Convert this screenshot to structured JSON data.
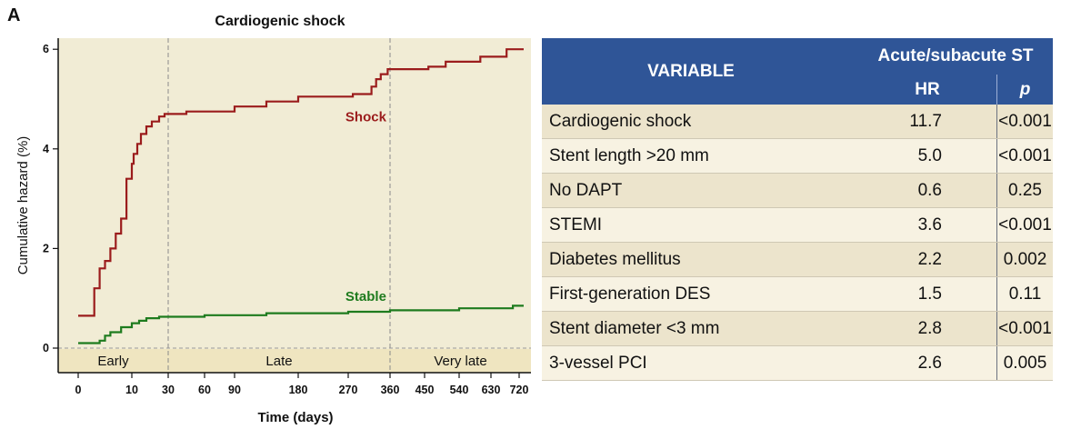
{
  "panel_label": "A",
  "chart_data": {
    "type": "line",
    "title": "Cardiogenic shock",
    "xlabel": "Time (days)",
    "ylabel": "Cumulative hazard (%)",
    "x_ticks": [
      "0",
      "10",
      "30",
      "60",
      "90",
      "180",
      "270",
      "360",
      "450",
      "540",
      "630",
      "720"
    ],
    "y_ticks": [
      "0",
      "2",
      "4",
      "6"
    ],
    "ylim": [
      0,
      6.2
    ],
    "periods": [
      "Early",
      "Late",
      "Very late"
    ],
    "period_boundaries": [
      "30",
      "360"
    ],
    "series": [
      {
        "name": "Shock",
        "color": "#9b1c1c",
        "step": true,
        "points": [
          [
            "0",
            0.65
          ],
          [
            "3",
            0.65
          ],
          [
            "3",
            1.2
          ],
          [
            "4",
            1.2
          ],
          [
            "4",
            1.6
          ],
          [
            "5",
            1.6
          ],
          [
            "5",
            1.75
          ],
          [
            "6",
            1.75
          ],
          [
            "6",
            2.0
          ],
          [
            "7",
            2.0
          ],
          [
            "7",
            2.3
          ],
          [
            "8",
            2.3
          ],
          [
            "8",
            2.6
          ],
          [
            "9",
            2.6
          ],
          [
            "9",
            3.4
          ],
          [
            "10",
            3.4
          ],
          [
            "10",
            3.7
          ],
          [
            "11",
            3.7
          ],
          [
            "11",
            3.9
          ],
          [
            "13",
            3.9
          ],
          [
            "13",
            4.1
          ],
          [
            "15",
            4.1
          ],
          [
            "15",
            4.3
          ],
          [
            "18",
            4.3
          ],
          [
            "18",
            4.45
          ],
          [
            "21",
            4.45
          ],
          [
            "21",
            4.55
          ],
          [
            "25",
            4.55
          ],
          [
            "25",
            4.65
          ],
          [
            "28",
            4.65
          ],
          [
            "28",
            4.7
          ],
          [
            "45",
            4.7
          ],
          [
            "45",
            4.75
          ],
          [
            "90",
            4.75
          ],
          [
            "90",
            4.85
          ],
          [
            "135",
            4.85
          ],
          [
            "135",
            4.95
          ],
          [
            "180",
            4.95
          ],
          [
            "180",
            5.05
          ],
          [
            "280",
            5.05
          ],
          [
            "280",
            5.1
          ],
          [
            "320",
            5.1
          ],
          [
            "320",
            5.25
          ],
          [
            "330",
            5.25
          ],
          [
            "330",
            5.4
          ],
          [
            "340",
            5.4
          ],
          [
            "340",
            5.5
          ],
          [
            "355",
            5.5
          ],
          [
            "355",
            5.6
          ],
          [
            "460",
            5.6
          ],
          [
            "460",
            5.65
          ],
          [
            "505",
            5.65
          ],
          [
            "505",
            5.75
          ],
          [
            "600",
            5.75
          ],
          [
            "600",
            5.85
          ],
          [
            "680",
            5.85
          ],
          [
            "680",
            6.0
          ],
          [
            "735",
            6.0
          ]
        ]
      },
      {
        "name": "Stable",
        "color": "#1e7b1e",
        "step": true,
        "points": [
          [
            "0",
            0.1
          ],
          [
            "4",
            0.1
          ],
          [
            "4",
            0.15
          ],
          [
            "5",
            0.15
          ],
          [
            "5",
            0.25
          ],
          [
            "6",
            0.25
          ],
          [
            "6",
            0.32
          ],
          [
            "8",
            0.32
          ],
          [
            "8",
            0.42
          ],
          [
            "10",
            0.42
          ],
          [
            "10",
            0.5
          ],
          [
            "14",
            0.5
          ],
          [
            "14",
            0.55
          ],
          [
            "18",
            0.55
          ],
          [
            "18",
            0.6
          ],
          [
            "25",
            0.6
          ],
          [
            "25",
            0.63
          ],
          [
            "60",
            0.63
          ],
          [
            "60",
            0.66
          ],
          [
            "135",
            0.66
          ],
          [
            "135",
            0.7
          ],
          [
            "270",
            0.7
          ],
          [
            "270",
            0.73
          ],
          [
            "360",
            0.73
          ],
          [
            "360",
            0.76
          ],
          [
            "540",
            0.76
          ],
          [
            "540",
            0.8
          ],
          [
            "700",
            0.8
          ],
          [
            "700",
            0.85
          ],
          [
            "735",
            0.85
          ]
        ]
      }
    ],
    "grid": false,
    "legend": "inline labels"
  },
  "table": {
    "header": {
      "variable": "VARIABLE",
      "group": "Acute/subacute ST",
      "hr": "HR",
      "p": "p"
    },
    "rows": [
      {
        "variable": "Cardiogenic shock",
        "hr": "11.7",
        "p": "<0.001"
      },
      {
        "variable": "Stent length >20 mm",
        "hr": "5.0",
        "p": "<0.001"
      },
      {
        "variable": "No DAPT",
        "hr": "0.6",
        "p": "0.25"
      },
      {
        "variable": "STEMI",
        "hr": "3.6",
        "p": "<0.001"
      },
      {
        "variable": "Diabetes mellitus",
        "hr": "2.2",
        "p": "0.002"
      },
      {
        "variable": "First-generation DES",
        "hr": "1.5",
        "p": "0.11"
      },
      {
        "variable": "Stent diameter <3 mm",
        "hr": "2.8",
        "p": "<0.001"
      },
      {
        "variable": "3-vessel PCI",
        "hr": "2.6",
        "p": "0.005"
      }
    ]
  }
}
